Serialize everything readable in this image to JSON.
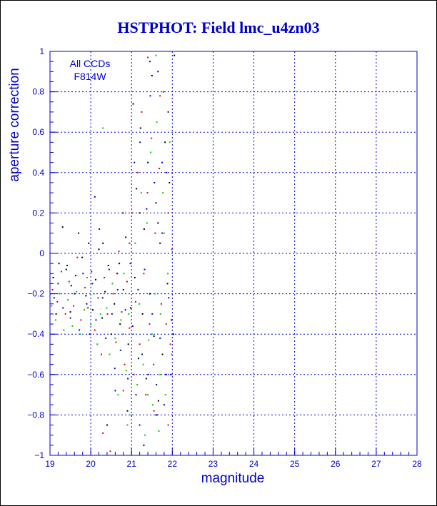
{
  "chart_data": {
    "type": "scatter",
    "title": "HSTPHOT: Field lmc_u4zn03",
    "xlabel": "magnitude",
    "ylabel": "aperture correction",
    "xlim": [
      19,
      28
    ],
    "ylim": [
      -1,
      1
    ],
    "x_ticks": [
      "19",
      "20",
      "21",
      "22",
      "23",
      "24",
      "25",
      "26",
      "27",
      "28"
    ],
    "y_ticks": [
      "−1",
      "−0.8",
      "−0.6",
      "−0.4",
      "−0.2",
      "0",
      "0.2",
      "0.4",
      "0.6",
      "0.8",
      "1"
    ],
    "annotations": [
      "All CCDs",
      "F814W"
    ],
    "grid": true,
    "colors": {
      "axis": "#0000cc",
      "title": "#0000cc",
      "points": [
        "#000000",
        "#e00000",
        "#00cc00",
        "#0000cc"
      ]
    },
    "series": [
      {
        "color": "#000000",
        "points": [
          [
            19.08,
            -0.12
          ],
          [
            19.22,
            -0.05
          ],
          [
            19.31,
            0.13
          ],
          [
            19.4,
            -0.08
          ],
          [
            19.52,
            -0.16
          ],
          [
            19.63,
            -0.11
          ],
          [
            19.7,
            0.1
          ],
          [
            19.79,
            -0.02
          ],
          [
            19.88,
            -0.21
          ],
          [
            19.95,
            0.05
          ],
          [
            20.05,
            -0.28
          ],
          [
            20.12,
            -0.13
          ],
          [
            20.2,
            0.02
          ],
          [
            20.28,
            -0.32
          ],
          [
            20.35,
            -0.19
          ],
          [
            20.43,
            -0.06
          ],
          [
            20.5,
            -0.4
          ],
          [
            20.58,
            -0.25
          ],
          [
            20.65,
            -0.1
          ],
          [
            20.72,
            -0.35
          ],
          [
            20.8,
            -0.18
          ],
          [
            20.86,
            0.08
          ],
          [
            20.92,
            -0.45
          ],
          [
            20.98,
            -0.27
          ],
          [
            21.04,
            0.74
          ],
          [
            21.08,
            -0.12
          ],
          [
            21.12,
            0.32
          ],
          [
            21.17,
            -0.52
          ],
          [
            21.22,
            0.62
          ],
          [
            21.27,
            -0.3
          ],
          [
            21.31,
            0.12
          ],
          [
            21.36,
            -0.62
          ],
          [
            21.4,
            0.45
          ],
          [
            21.45,
            -0.2
          ],
          [
            21.5,
            0.88
          ],
          [
            21.55,
            -0.41
          ],
          [
            21.6,
            0.25
          ],
          [
            21.66,
            -0.73
          ],
          [
            21.7,
            0.05
          ],
          [
            21.76,
            -0.5
          ],
          [
            21.82,
            0.55
          ],
          [
            21.88,
            -0.15
          ],
          [
            21.93,
            0.35
          ],
          [
            21.98,
            -0.33
          ],
          [
            22.05,
            0.98
          ],
          [
            19.15,
            -0.3
          ],
          [
            19.5,
            -0.29
          ],
          [
            20.4,
            -0.85
          ],
          [
            20.9,
            -0.78
          ],
          [
            21.3,
            -0.95
          ],
          [
            21.65,
            0.15
          ],
          [
            21.2,
            0.2
          ],
          [
            20.7,
            -0.05
          ],
          [
            20.3,
            0.05
          ]
        ]
      },
      {
        "color": "#e00000",
        "points": [
          [
            19.06,
            -0.18
          ],
          [
            19.18,
            -0.24
          ],
          [
            19.28,
            -0.09
          ],
          [
            19.38,
            -0.3
          ],
          [
            19.47,
            -0.14
          ],
          [
            19.58,
            -0.26
          ],
          [
            19.67,
            -0.02
          ],
          [
            19.76,
            -0.33
          ],
          [
            19.86,
            -0.17
          ],
          [
            19.93,
            -0.27
          ],
          [
            20.02,
            -0.09
          ],
          [
            20.1,
            -0.38
          ],
          [
            20.18,
            -0.22
          ],
          [
            20.26,
            -0.5
          ],
          [
            20.33,
            -0.12
          ],
          [
            20.41,
            -0.3
          ],
          [
            20.48,
            -0.98
          ],
          [
            20.55,
            -0.2
          ],
          [
            20.62,
            -0.44
          ],
          [
            20.69,
            0.01
          ],
          [
            20.76,
            -0.29
          ],
          [
            20.83,
            -0.55
          ],
          [
            20.89,
            -0.14
          ],
          [
            20.95,
            -0.37
          ],
          [
            21.01,
            0.2
          ],
          [
            21.06,
            -0.6
          ],
          [
            21.1,
            -0.24
          ],
          [
            21.15,
            0.4
          ],
          [
            21.2,
            -0.45
          ],
          [
            21.25,
            0.7
          ],
          [
            21.3,
            -0.1
          ],
          [
            21.35,
            -0.7
          ],
          [
            21.39,
            0.3
          ],
          [
            21.44,
            -0.35
          ],
          [
            21.49,
            0.57
          ],
          [
            21.54,
            -0.55
          ],
          [
            21.58,
            0.1
          ],
          [
            21.63,
            -0.8
          ],
          [
            21.68,
            0.42
          ],
          [
            21.73,
            -0.25
          ],
          [
            21.78,
            0.8
          ],
          [
            21.84,
            -0.6
          ],
          [
            21.9,
            0.2
          ],
          [
            21.95,
            -0.45
          ],
          [
            21.99,
            0.02
          ],
          [
            20.3,
            -0.89
          ],
          [
            21.7,
            0.78
          ],
          [
            21.4,
            0.97
          ],
          [
            20.8,
            -0.68
          ],
          [
            21.55,
            -0.78
          ],
          [
            21.9,
            -0.85
          ],
          [
            20.95,
            0.05
          ],
          [
            21.85,
            -0.35
          ]
        ]
      },
      {
        "color": "#00cc00",
        "points": [
          [
            19.04,
            -0.26
          ],
          [
            19.14,
            -0.33
          ],
          [
            19.24,
            -0.2
          ],
          [
            19.34,
            -0.38
          ],
          [
            19.44,
            -0.23
          ],
          [
            19.55,
            -0.36
          ],
          [
            19.65,
            -0.19
          ],
          [
            19.74,
            -0.4
          ],
          [
            19.84,
            -0.28
          ],
          [
            19.91,
            -0.12
          ],
          [
            20.0,
            -0.35
          ],
          [
            20.08,
            -0.2
          ],
          [
            20.16,
            -0.45
          ],
          [
            20.24,
            -0.3
          ],
          [
            20.31,
            -0.6
          ],
          [
            20.39,
            -0.27
          ],
          [
            20.46,
            -0.5
          ],
          [
            20.53,
            -0.15
          ],
          [
            20.6,
            -0.42
          ],
          [
            20.67,
            -0.7
          ],
          [
            20.74,
            -0.33
          ],
          [
            20.81,
            -0.1
          ],
          [
            20.87,
            -0.58
          ],
          [
            20.93,
            -0.3
          ],
          [
            20.99,
            -0.8
          ],
          [
            21.05,
            -0.4
          ],
          [
            21.09,
            0.05
          ],
          [
            21.14,
            -0.65
          ],
          [
            21.19,
            -0.25
          ],
          [
            21.24,
            0.3
          ],
          [
            21.29,
            -0.55
          ],
          [
            21.33,
            -0.9
          ],
          [
            21.38,
            0.15
          ],
          [
            21.42,
            -0.43
          ],
          [
            21.47,
            0.5
          ],
          [
            21.52,
            -0.75
          ],
          [
            21.57,
            -0.2
          ],
          [
            21.62,
            0.65
          ],
          [
            21.67,
            -0.88
          ],
          [
            21.71,
            -0.3
          ],
          [
            21.77,
            0.3
          ],
          [
            21.83,
            -0.7
          ],
          [
            21.89,
            -0.1
          ],
          [
            21.94,
            0.55
          ],
          [
            21.98,
            -0.5
          ],
          [
            20.3,
            0.62
          ],
          [
            21.6,
            0.98
          ],
          [
            21.5,
            -0.4
          ],
          [
            20.9,
            -0.85
          ],
          [
            21.8,
            0.1
          ],
          [
            21.7,
            -0.6
          ],
          [
            21.4,
            -0.7
          ],
          [
            20.8,
            -0.4
          ]
        ]
      },
      {
        "color": "#0000cc",
        "points": [
          [
            19.1,
            -0.22
          ],
          [
            19.2,
            -0.15
          ],
          [
            19.32,
            -0.27
          ],
          [
            19.42,
            -0.06
          ],
          [
            19.5,
            -0.32
          ],
          [
            19.6,
            -0.2
          ],
          [
            19.72,
            -0.38
          ],
          [
            19.81,
            -0.1
          ],
          [
            19.9,
            -0.25
          ],
          [
            19.97,
            -0.4
          ],
          [
            20.04,
            -0.15
          ],
          [
            20.13,
            -0.33
          ],
          [
            20.21,
            0.12
          ],
          [
            20.29,
            -0.22
          ],
          [
            20.37,
            -0.42
          ],
          [
            20.45,
            -0.08
          ],
          [
            20.52,
            -0.3
          ],
          [
            20.59,
            -0.57
          ],
          [
            20.66,
            -0.18
          ],
          [
            20.73,
            -0.48
          ],
          [
            20.79,
            0.2
          ],
          [
            20.85,
            -0.28
          ],
          [
            20.91,
            -0.62
          ],
          [
            20.97,
            -0.05
          ],
          [
            21.03,
            -0.36
          ],
          [
            21.07,
            0.45
          ],
          [
            21.11,
            -0.7
          ],
          [
            21.16,
            -0.18
          ],
          [
            21.21,
            0.55
          ],
          [
            21.26,
            -0.5
          ],
          [
            21.32,
            -0.08
          ],
          [
            21.37,
            0.22
          ],
          [
            21.41,
            -0.6
          ],
          [
            21.46,
            0.78
          ],
          [
            21.51,
            -0.3
          ],
          [
            21.56,
            0.35
          ],
          [
            21.61,
            -0.65
          ],
          [
            21.65,
            0.9
          ],
          [
            21.7,
            -0.42
          ],
          [
            21.75,
            0.1
          ],
          [
            21.8,
            -0.75
          ],
          [
            21.86,
            0.4
          ],
          [
            21.91,
            -0.22
          ],
          [
            21.96,
            -0.6
          ],
          [
            22.03,
            -0.4
          ],
          [
            20.1,
            0.28
          ],
          [
            21.45,
            0.95
          ],
          [
            21.6,
            -0.8
          ],
          [
            21.2,
            -0.85
          ],
          [
            21.85,
            -0.6
          ],
          [
            21.9,
            0.7
          ],
          [
            20.6,
            -0.68
          ],
          [
            21.75,
            0.45
          ]
        ]
      }
    ]
  }
}
